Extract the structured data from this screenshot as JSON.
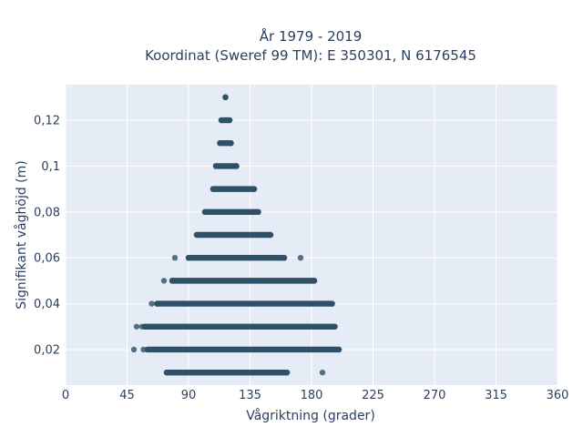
{
  "chart_data": {
    "type": "scatter",
    "title_line1": "År 1979 - 2019",
    "title_line2": "Koordinat (Sweref 99 TM): E 350301, N 6176545",
    "xlabel": "Vågriktning (grader)",
    "ylabel": "Signifikant våghöjd (m)",
    "xlim": [
      0,
      360
    ],
    "ylim": [
      0.0045,
      0.1355
    ],
    "x_ticks": [
      0,
      45,
      90,
      135,
      180,
      225,
      270,
      315,
      360
    ],
    "x_tick_labels": [
      "0",
      "45",
      "90",
      "135",
      "180",
      "225",
      "270",
      "315",
      "360"
    ],
    "y_ticks": [
      0.02,
      0.04,
      0.06,
      0.08,
      0.1,
      0.12
    ],
    "y_tick_labels": [
      "0,02",
      "0,04",
      "0,06",
      "0,08",
      "0,1",
      "0,12"
    ],
    "grid": true,
    "marker_color": "#2f5066",
    "plot_background": "#e5ecf6",
    "bands": [
      {
        "y": 0.13,
        "x_min": 117,
        "x_max": 117
      },
      {
        "y": 0.12,
        "x_min": 114,
        "x_max": 120
      },
      {
        "y": 0.11,
        "x_min": 113,
        "x_max": 121
      },
      {
        "y": 0.1,
        "x_min": 110,
        "x_max": 125
      },
      {
        "y": 0.09,
        "x_min": 108,
        "x_max": 138
      },
      {
        "y": 0.08,
        "x_min": 102,
        "x_max": 141
      },
      {
        "y": 0.07,
        "x_min": 96,
        "x_max": 150
      },
      {
        "y": 0.06,
        "x_min": 90,
        "x_max": 160
      },
      {
        "y": 0.05,
        "x_min": 78,
        "x_max": 182
      },
      {
        "y": 0.04,
        "x_min": 67,
        "x_max": 195
      },
      {
        "y": 0.03,
        "x_min": 58,
        "x_max": 197
      },
      {
        "y": 0.02,
        "x_min": 60,
        "x_max": 200
      },
      {
        "y": 0.01,
        "x_min": 74,
        "x_max": 162
      }
    ],
    "outliers": [
      {
        "x": 80,
        "y": 0.06
      },
      {
        "x": 172,
        "y": 0.06
      },
      {
        "x": 72,
        "y": 0.05
      },
      {
        "x": 63,
        "y": 0.04
      },
      {
        "x": 52,
        "y": 0.03
      },
      {
        "x": 56,
        "y": 0.03
      },
      {
        "x": 50,
        "y": 0.02
      },
      {
        "x": 57,
        "y": 0.02
      },
      {
        "x": 188,
        "y": 0.01
      }
    ]
  }
}
